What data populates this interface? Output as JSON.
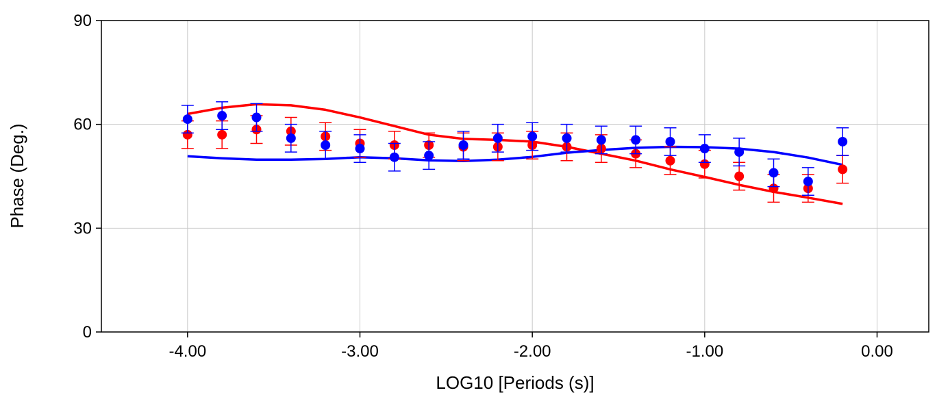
{
  "chart_data": {
    "type": "scatter",
    "title": "",
    "xlabel": "LOG10 [Periods (s)]",
    "ylabel": "Phase (Deg.)",
    "xlim": [
      -4.5,
      0.3
    ],
    "ylim": [
      0,
      90
    ],
    "xticks": [
      {
        "value": -4,
        "label": "-4.00"
      },
      {
        "value": -3,
        "label": "-3.00"
      },
      {
        "value": -2,
        "label": "-2.00"
      },
      {
        "value": -1,
        "label": "-1.00"
      },
      {
        "value": 0,
        "label": "0.00"
      }
    ],
    "yticks": [
      {
        "value": 0,
        "label": "0"
      },
      {
        "value": 30,
        "label": "30"
      },
      {
        "value": 60,
        "label": "60"
      },
      {
        "value": 90,
        "label": "90"
      }
    ],
    "grid": true,
    "legend": "none",
    "x": [
      -4.0,
      -3.8,
      -3.6,
      -3.4,
      -3.2,
      -3.0,
      -2.8,
      -2.6,
      -2.4,
      -2.2,
      -2.0,
      -1.8,
      -1.6,
      -1.4,
      -1.2,
      -1.0,
      -0.8,
      -0.6,
      -0.4,
      -0.2
    ],
    "series": [
      {
        "color": "#ff0000",
        "points": [
          57.0,
          57.0,
          58.5,
          58.0,
          56.5,
          54.5,
          54.0,
          54.0,
          53.5,
          53.5,
          54.0,
          53.5,
          53.0,
          51.5,
          49.5,
          48.5,
          45.0,
          41.5,
          41.5,
          47.0
        ],
        "error": [
          4.0,
          4.0,
          4.0,
          4.0,
          4.0,
          4.0,
          4.0,
          3.5,
          4.0,
          4.0,
          4.0,
          4.0,
          4.0,
          4.0,
          4.0,
          4.0,
          4.0,
          4.0,
          4.0,
          4.0
        ],
        "model": [
          63.0,
          64.8,
          65.8,
          65.5,
          64.2,
          62.0,
          59.5,
          57.0,
          55.8,
          55.5,
          55.0,
          53.5,
          51.5,
          49.5,
          47.0,
          44.8,
          42.5,
          40.5,
          38.8,
          37.0
        ]
      },
      {
        "color": "#0000ff",
        "points": [
          61.5,
          62.5,
          62.0,
          56.0,
          54.0,
          53.0,
          50.5,
          51.0,
          54.0,
          56.0,
          56.5,
          56.0,
          55.5,
          55.5,
          55.0,
          53.0,
          52.0,
          46.0,
          43.5,
          55.0
        ],
        "error": [
          4.0,
          4.0,
          4.0,
          4.0,
          4.0,
          4.0,
          4.0,
          4.0,
          4.0,
          4.0,
          4.0,
          4.0,
          4.0,
          4.0,
          4.0,
          4.0,
          4.0,
          4.0,
          4.0,
          4.0
        ],
        "model": [
          50.8,
          50.2,
          49.8,
          49.8,
          50.0,
          50.5,
          50.2,
          49.6,
          49.4,
          49.8,
          50.6,
          51.8,
          52.6,
          53.2,
          53.5,
          53.4,
          53.0,
          52.0,
          50.4,
          48.3
        ]
      }
    ]
  }
}
